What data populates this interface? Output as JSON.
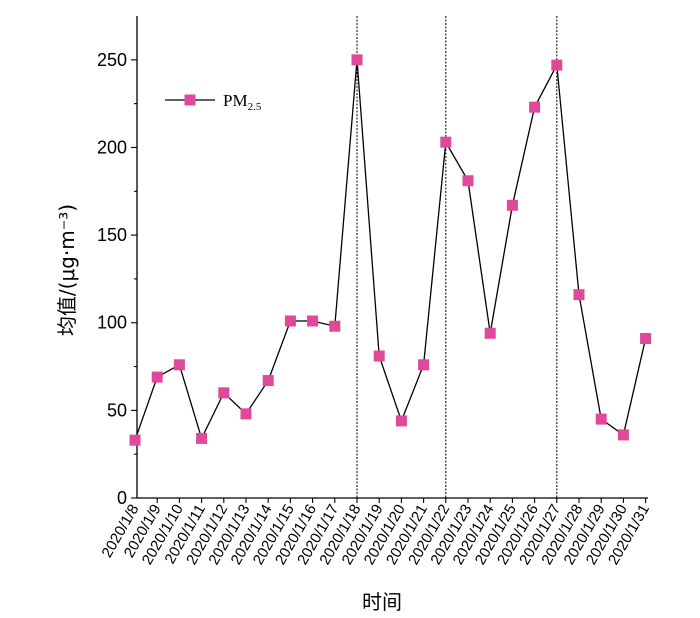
{
  "chart_data": {
    "type": "line",
    "xlabel": "时间",
    "ylabel": "均值/(μg·m⁻³)",
    "ylim": [
      0,
      275
    ],
    "yticks": [
      0,
      50,
      100,
      150,
      200,
      250
    ],
    "categories": [
      "2020/1/8",
      "2020/1/9",
      "2020/1/10",
      "2020/1/11",
      "2020/1/12",
      "2020/1/13",
      "2020/1/14",
      "2020/1/15",
      "2020/1/16",
      "2020/1/17",
      "2020/1/18",
      "2020/1/19",
      "2020/1/20",
      "2020/1/21",
      "2020/1/22",
      "2020/1/23",
      "2020/1/24",
      "2020/1/25",
      "2020/1/26",
      "2020/1/27",
      "2020/1/28",
      "2020/1/29",
      "2020/1/30",
      "2020/1/31"
    ],
    "series": [
      {
        "name": "PM2.5",
        "color": "#e0489a",
        "marker": "square",
        "values": [
          33,
          69,
          76,
          34,
          60,
          48,
          67,
          101,
          101,
          98,
          250,
          81,
          44,
          76,
          203,
          181,
          94,
          167,
          223,
          247,
          116,
          45,
          36,
          91
        ]
      }
    ],
    "vertical_lines_at": [
      "2020/1/18",
      "2020/1/22",
      "2020/1/27"
    ],
    "legend": {
      "placement": "top-left",
      "label_main": "PM",
      "label_sub": "2.5"
    },
    "grid": false
  }
}
